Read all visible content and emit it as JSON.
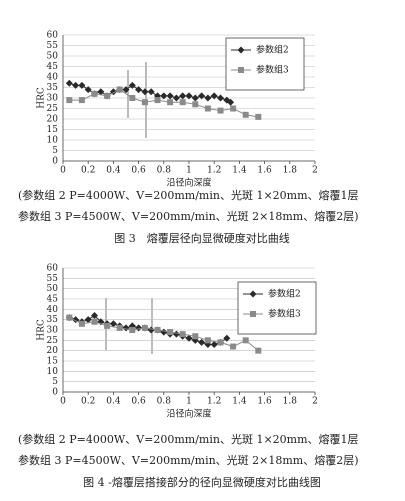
{
  "chart_data": [
    {
      "type": "line",
      "x_label": "沿径向深度",
      "y_label": "HRC",
      "xlim": [
        0,
        2
      ],
      "xticks": [
        0,
        0.2,
        0.4,
        0.6,
        0.8,
        1,
        1.2,
        1.4,
        1.6,
        1.8,
        2
      ],
      "ylim": [
        0,
        60
      ],
      "yticks": [
        0,
        5,
        10,
        15,
        20,
        25,
        30,
        35,
        40,
        45,
        50,
        55,
        60
      ],
      "grid": true,
      "series": [
        {
          "name": "参数组2",
          "color": "#2a2a2a",
          "marker": "diamond",
          "x": [
            0.05,
            0.1,
            0.15,
            0.2,
            0.25,
            0.3,
            0.35,
            0.4,
            0.45,
            0.5,
            0.55,
            0.6,
            0.65,
            0.7,
            0.75,
            0.8,
            0.85,
            0.9,
            0.95,
            1,
            1.05,
            1.1,
            1.15,
            1.2,
            1.25,
            1.3,
            1.33
          ],
          "values": [
            37,
            36,
            36,
            34,
            32,
            33,
            31,
            33,
            34,
            34,
            36,
            34,
            33,
            33,
            31,
            31,
            31,
            30,
            31,
            31,
            30,
            31,
            30,
            31,
            30,
            29,
            28
          ]
        },
        {
          "name": "参数组3",
          "color": "#8a8a8a",
          "marker": "square",
          "x": [
            0.05,
            0.15,
            0.25,
            0.35,
            0.45,
            0.55,
            0.65,
            0.75,
            0.85,
            0.95,
            1.05,
            1.15,
            1.25,
            1.35,
            1.45,
            1.55
          ],
          "values": [
            29,
            29,
            32,
            31,
            34,
            30,
            28,
            29,
            28,
            28,
            27,
            25,
            24,
            25,
            22,
            21
          ]
        }
      ],
      "notes": [
        "(参数组 2 P=4000W、V=200mm/min、光斑 1×20mm、熔覆1层",
        "参数组 3 P=4500W、V=200mm/min、光斑 2×18mm、熔覆2层)"
      ],
      "caption": "图 3　熔覆层径向显微硬度对比曲线"
    },
    {
      "type": "line",
      "x_label": "沿径向深度",
      "y_label": "HRC",
      "xlim": [
        0,
        2
      ],
      "xticks": [
        0,
        0.2,
        0.4,
        0.6,
        0.8,
        1,
        1.2,
        1.4,
        1.6,
        1.8,
        2
      ],
      "ylim": [
        0,
        60
      ],
      "yticks": [
        0,
        5,
        10,
        15,
        20,
        25,
        30,
        35,
        40,
        45,
        50,
        55,
        60
      ],
      "grid": true,
      "series": [
        {
          "name": "参数组2",
          "color": "#2a2a2a",
          "marker": "diamond",
          "x": [
            0.05,
            0.1,
            0.15,
            0.2,
            0.25,
            0.3,
            0.35,
            0.4,
            0.45,
            0.5,
            0.55,
            0.6,
            0.65,
            0.7,
            0.75,
            0.8,
            0.85,
            0.9,
            0.95,
            1,
            1.05,
            1.1,
            1.15,
            1.2,
            1.25,
            1.3
          ],
          "values": [
            36,
            35,
            34,
            35,
            37,
            34,
            33,
            33,
            32,
            31,
            32,
            31,
            31,
            30,
            30,
            29,
            28,
            28,
            27,
            26,
            25,
            24,
            23,
            23,
            24,
            26
          ]
        },
        {
          "name": "参数组3",
          "color": "#8a8a8a",
          "marker": "square",
          "x": [
            0.05,
            0.15,
            0.25,
            0.35,
            0.45,
            0.55,
            0.65,
            0.75,
            0.85,
            0.95,
            1.05,
            1.15,
            1.25,
            1.35,
            1.45,
            1.55
          ],
          "values": [
            36,
            33,
            34,
            32,
            31,
            30,
            31,
            30,
            29,
            28,
            27,
            25,
            24,
            22,
            25,
            20
          ]
        }
      ],
      "notes": [
        "(参数组 2 P=4000W、V=200mm/min、光斑 1×20mm、熔覆1层",
        "参数组 3 P=4500W、V=200mm/min、光斑 2×18mm、熔覆2层)"
      ],
      "caption": "图 4 -熔覆层搭接部分的径向显微硬度对比曲线图"
    }
  ]
}
